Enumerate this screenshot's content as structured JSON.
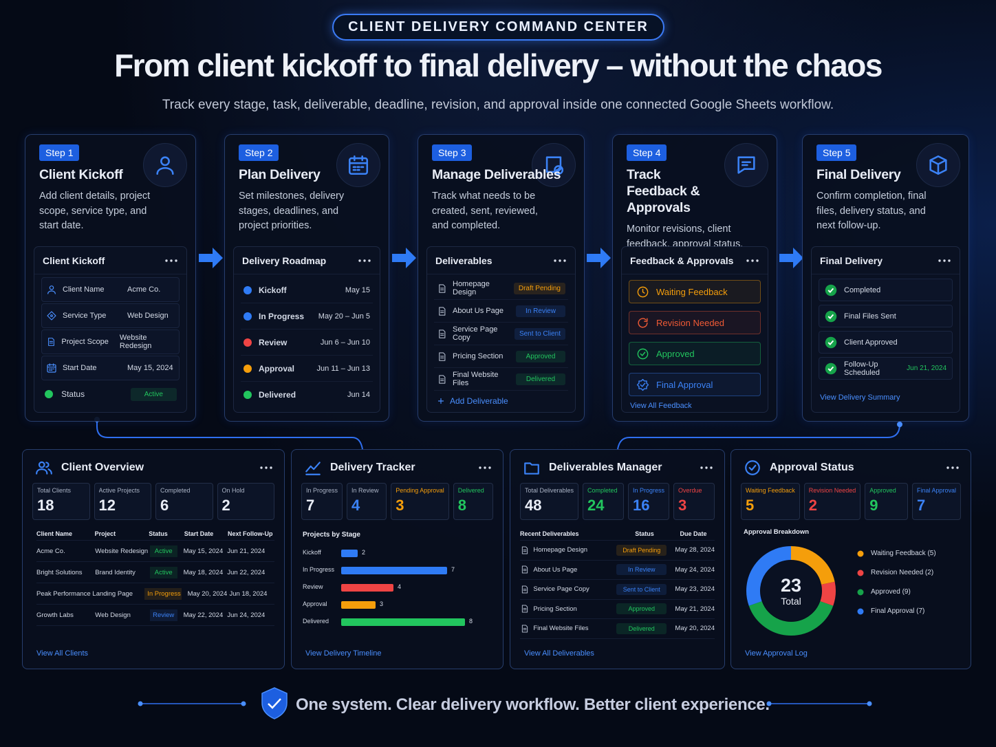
{
  "header": {
    "badge": "CLIENT DELIVERY COMMAND CENTER",
    "title": "From client kickoff to final delivery – without the chaos",
    "subtitle": "Track every stage, task, deliverable, deadline, revision, and approval inside one connected Google Sheets workflow."
  },
  "steps": [
    {
      "step": "Step 1",
      "title": "Client Kickoff",
      "description": "Add client details, project scope, service type, and start date.",
      "panel": {
        "title": "Client Kickoff",
        "rows": [
          {
            "label": "Client Name",
            "value": "Acme Co."
          },
          {
            "label": "Service Type",
            "value": "Web Design"
          },
          {
            "label": "Project Scope",
            "value": "Website Redesign"
          },
          {
            "label": "Start Date",
            "value": "May 15, 2024"
          },
          {
            "label": "Status",
            "value": "Active",
            "color": "#22c55e"
          }
        ]
      }
    },
    {
      "step": "Step 2",
      "title": "Plan Delivery",
      "description": "Set milestones, delivery stages, deadlines, and project priorities.",
      "panel": {
        "title": "Delivery Roadmap",
        "rows": [
          {
            "label": "Kickoff",
            "date": "May 15",
            "color": "#2f7bf5"
          },
          {
            "label": "In Progress",
            "date": "May 20 – Jun 5",
            "color": "#2f7bf5"
          },
          {
            "label": "Review",
            "date": "Jun 6 – Jun 10",
            "color": "#ef4444"
          },
          {
            "label": "Approval",
            "date": "Jun 11 – Jun 13",
            "color": "#f59e0b"
          },
          {
            "label": "Delivered",
            "date": "Jun 14",
            "color": "#22c55e"
          }
        ]
      }
    },
    {
      "step": "Step 3",
      "title": "Manage Deliverables",
      "description": "Track what needs to be created, sent, reviewed, and completed.",
      "panel": {
        "title": "Deliverables",
        "rows": [
          {
            "label": "Homepage Design",
            "status": "Draft Pending",
            "color": "#f59e0b"
          },
          {
            "label": "About Us Page",
            "status": "In Review",
            "color": "#3b82f6"
          },
          {
            "label": "Service Page Copy",
            "status": "Sent to Client",
            "color": "#3b82f6"
          },
          {
            "label": "Pricing Section",
            "status": "Approved",
            "color": "#22c55e"
          },
          {
            "label": "Final Website Files",
            "status": "Delivered",
            "color": "#22c55e"
          }
        ],
        "action": "Add Deliverable"
      }
    },
    {
      "step": "Step 4",
      "title": "Track Feedback & Approvals",
      "description": "Monitor revisions, client feedback, approval status, and waiting items.",
      "panel": {
        "title": "Feedback & Approvals",
        "rows": [
          {
            "label": "Waiting Feedback",
            "color": "#f59e0b"
          },
          {
            "label": "Revision Needed",
            "color": "#f05a35"
          },
          {
            "label": "Approved",
            "color": "#22c55e"
          },
          {
            "label": "Final Approval",
            "color": "#3b82f6"
          }
        ],
        "link": "View All Feedback"
      }
    },
    {
      "step": "Step 5",
      "title": "Final Delivery",
      "description": "Confirm completion, final files, delivery status, and next follow-up.",
      "panel": {
        "title": "Final Delivery",
        "rows": [
          {
            "label": "Completed"
          },
          {
            "label": "Final Files Sent"
          },
          {
            "label": "Client Approved"
          },
          {
            "label": "Follow-Up Scheduled",
            "date": "Jun 21, 2024"
          }
        ],
        "link": "View Delivery Summary"
      }
    }
  ],
  "overview": {
    "title": "Client Overview",
    "stats": [
      {
        "label": "Total Clients",
        "value": 18
      },
      {
        "label": "Active Projects",
        "value": 12
      },
      {
        "label": "Completed",
        "value": 6
      },
      {
        "label": "On Hold",
        "value": 2
      }
    ],
    "table": {
      "columns": [
        "Client Name",
        "Project",
        "Status",
        "Start Date",
        "Next Follow-Up"
      ],
      "rows": [
        {
          "client": "Acme Co.",
          "project": "Website Redesign",
          "status": "Active",
          "start": "May 15, 2024",
          "follow_up": "Jun 21, 2024",
          "color": "#22c55e"
        },
        {
          "client": "Bright Solutions",
          "project": "Brand Identity",
          "status": "Active",
          "start": "May 18, 2024",
          "follow_up": "Jun 22, 2024",
          "color": "#22c55e"
        },
        {
          "client": "Peak Performance",
          "project": "Landing Page",
          "status": "In Progress",
          "start": "May 20, 2024",
          "follow_up": "Jun 18, 2024",
          "color": "#f59e0b"
        },
        {
          "client": "Growth Labs",
          "project": "Web Design",
          "status": "Review",
          "start": "May 22, 2024",
          "follow_up": "Jun 24, 2024",
          "color": "#3b82f6"
        }
      ]
    },
    "link": "View All Clients"
  },
  "tracker": {
    "title": "Delivery Tracker",
    "stats": [
      {
        "label": "In Progress",
        "value": 7
      },
      {
        "label": "In Review",
        "value": 4,
        "color": "#3b82f6"
      },
      {
        "label": "Pending Approval",
        "value": 3,
        "color": "#f59e0b"
      },
      {
        "label": "Delivered",
        "value": 8,
        "color": "#22c55e"
      }
    ],
    "chart_title": "Projects by Stage",
    "bars": [
      {
        "label": "Kickoff",
        "value": 2,
        "color": "#2f7bf5"
      },
      {
        "label": "In Progress",
        "value": 7,
        "color": "#2f7bf5"
      },
      {
        "label": "Review",
        "value": 4,
        "color": "#ef4444"
      },
      {
        "label": "Approval",
        "value": 3,
        "color": "#f59e0b"
      },
      {
        "label": "Delivered",
        "value": 8,
        "color": "#22c55e"
      }
    ],
    "link": "View Delivery Timeline"
  },
  "deliverables": {
    "title": "Deliverables Manager",
    "stats": [
      {
        "label": "Total Deliverables",
        "value": 48
      },
      {
        "label": "Completed",
        "value": 24,
        "color": "#22c55e"
      },
      {
        "label": "In Progress",
        "value": 16,
        "color": "#3b82f6"
      },
      {
        "label": "Overdue",
        "value": 3,
        "color": "#ef4444"
      }
    ],
    "table": {
      "columns": [
        "Recent Deliverables",
        "Status",
        "Due Date"
      ],
      "rows": [
        {
          "name": "Homepage Design",
          "status": "Draft Pending",
          "due": "May 28, 2024",
          "color": "#f59e0b"
        },
        {
          "name": "About Us Page",
          "status": "In Review",
          "due": "May 24, 2024",
          "color": "#3b82f6"
        },
        {
          "name": "Service Page Copy",
          "status": "Sent to Client",
          "due": "May 23, 2024",
          "color": "#3b82f6"
        },
        {
          "name": "Pricing Section",
          "status": "Approved",
          "due": "May 21, 2024",
          "color": "#22c55e"
        },
        {
          "name": "Final Website Files",
          "status": "Delivered",
          "due": "May 20, 2024",
          "color": "#22c55e"
        }
      ]
    },
    "link": "View All Deliverables"
  },
  "approval": {
    "title": "Approval Status",
    "stats": [
      {
        "label": "Waiting Feedback",
        "value": 5,
        "color": "#f59e0b"
      },
      {
        "label": "Revision Needed",
        "value": 2,
        "color": "#ef4444"
      },
      {
        "label": "Approved",
        "value": 9,
        "color": "#22c55e"
      },
      {
        "label": "Final Approval",
        "value": 7,
        "color": "#3b82f6"
      }
    ],
    "breakdown_title": "Approval Breakdown",
    "total": 23,
    "total_label": "Total",
    "breakdown": [
      {
        "label": "Waiting Feedback (5)",
        "value": 5,
        "color": "#f59e0b"
      },
      {
        "label": "Revision Needed (2)",
        "value": 2,
        "color": "#ef4444"
      },
      {
        "label": "Approved (9)",
        "value": 9,
        "color": "#16a34a"
      },
      {
        "label": "Final Approval (7)",
        "value": 7,
        "color": "#2f7bf5"
      }
    ],
    "link": "View Approval Log"
  },
  "footer": "One system. Clear delivery workflow. Better client experience."
}
